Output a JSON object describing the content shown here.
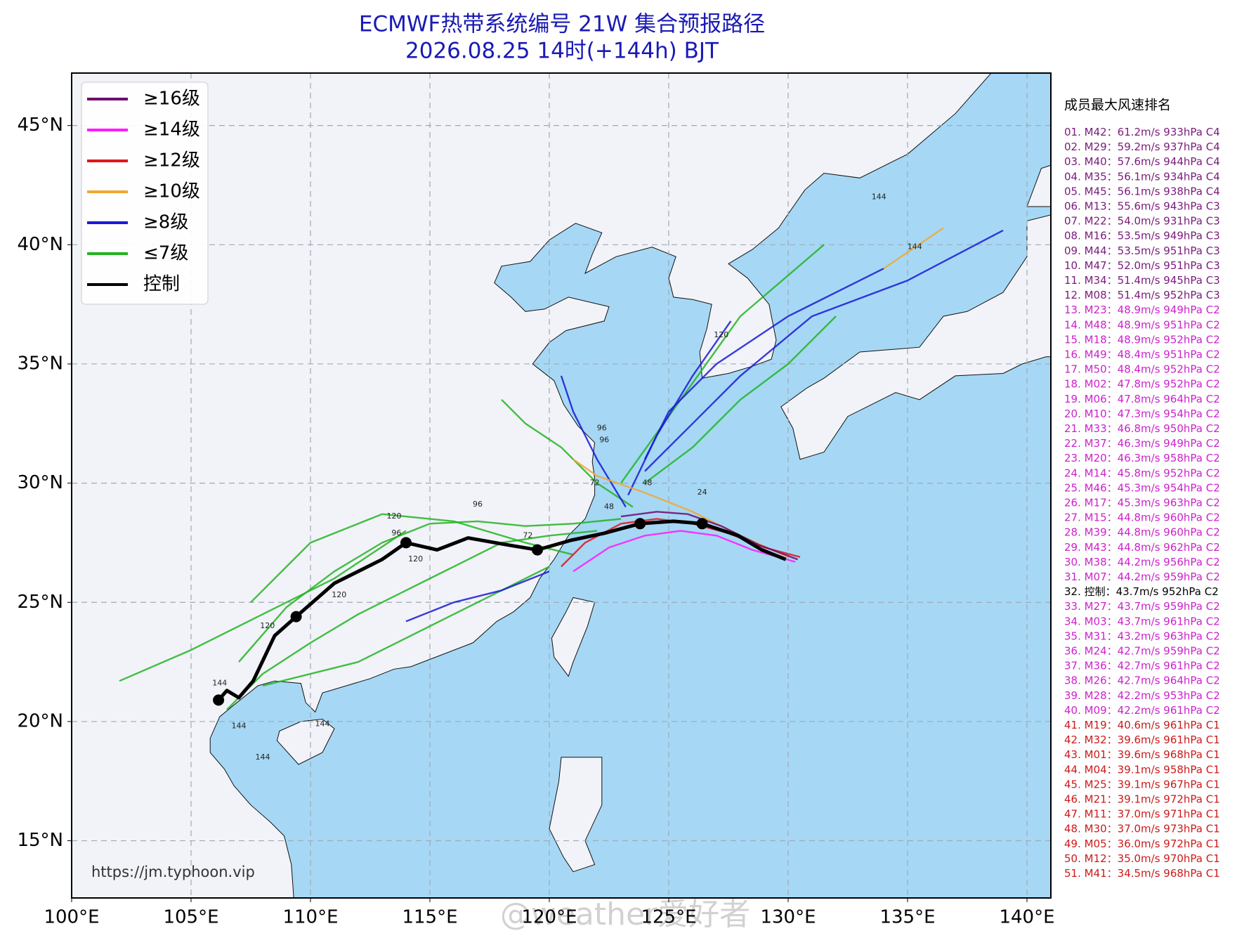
{
  "map_data": {
    "type": "track",
    "title": "ECMWF热带系统编号 21W 集合预报路径",
    "subtitle": "2026.08.25 14时(+144h) BJT",
    "lonlim": [
      100,
      141
    ],
    "latlim": [
      12.6,
      47.2
    ],
    "lonticks": [
      {
        "value": 100,
        "label": "100°E"
      },
      {
        "value": 105,
        "label": "105°E"
      },
      {
        "value": 110,
        "label": "110°E"
      },
      {
        "value": 115,
        "label": "115°E"
      },
      {
        "value": 120,
        "label": "120°E"
      },
      {
        "value": 125,
        "label": "125°E"
      },
      {
        "value": 130,
        "label": "130°E"
      },
      {
        "value": 135,
        "label": "135°E"
      },
      {
        "value": 140,
        "label": "140°E"
      }
    ],
    "latticks": [
      {
        "value": 15,
        "label": "15°N"
      },
      {
        "value": 20,
        "label": "20°N"
      },
      {
        "value": 25,
        "label": "25°N"
      },
      {
        "value": 30,
        "label": "30°N"
      },
      {
        "value": 35,
        "label": "35°N"
      },
      {
        "value": 40,
        "label": "40°N"
      },
      {
        "value": 45,
        "label": "45°N"
      }
    ],
    "grid": true,
    "legend": [
      {
        "label": "≥16级",
        "color": "#6f0a6f"
      },
      {
        "label": "≥14级",
        "color": "#ff1aff"
      },
      {
        "label": "≥12级",
        "color": "#e3141c"
      },
      {
        "label": "≥10级",
        "color": "#f0a830"
      },
      {
        "label": "≥8级",
        "color": "#1a1ad6"
      },
      {
        "label": "≤7级",
        "color": "#22b422"
      },
      {
        "label": "控制",
        "color": "#000000"
      }
    ],
    "tracks": [
      {
        "color": "#22b422",
        "lon": [
          123,
          121,
          119,
          117,
          115,
          113,
          111,
          109,
          107
        ],
        "lat": [
          28.5,
          28.3,
          28.2,
          28.4,
          28.3,
          27.5,
          26.3,
          24.8,
          22.5
        ]
      },
      {
        "color": "#22b422",
        "lon": [
          122,
          120,
          118,
          116,
          114,
          112,
          110,
          108,
          106.5
        ],
        "lat": [
          28,
          27.8,
          27.5,
          26.5,
          25.5,
          24.5,
          23.3,
          22,
          20.5
        ]
      },
      {
        "color": "#22b422",
        "lon": [
          114,
          111,
          108,
          105,
          102
        ],
        "lat": [
          28,
          26,
          24.5,
          23,
          21.7
        ]
      },
      {
        "color": "#22b422",
        "lon": [
          123.5,
          122,
          120.5,
          119,
          118
        ],
        "lat": [
          29,
          30,
          31.5,
          32.5,
          33.5
        ]
      },
      {
        "color": "#22b422",
        "lon": [
          124,
          126,
          128,
          130,
          132
        ],
        "lat": [
          30,
          31.5,
          33.5,
          35,
          37
        ]
      },
      {
        "color": "#22b422",
        "lon": [
          120,
          118,
          116,
          114,
          112,
          110,
          108
        ],
        "lat": [
          26.5,
          25.5,
          24.5,
          23.5,
          22.5,
          22,
          21.5
        ]
      },
      {
        "color": "#22b422",
        "lon": [
          121,
          119,
          116,
          113,
          110,
          107.5
        ],
        "lat": [
          27,
          27.5,
          28.4,
          28.7,
          27.5,
          25
        ]
      },
      {
        "color": "#22b422",
        "lon": [
          123,
          125.5,
          128,
          131.5
        ],
        "lat": [
          30,
          33.5,
          37,
          40
        ]
      },
      {
        "color": "#1a1ad6",
        "lon": [
          124,
          126,
          128,
          131,
          135,
          139
        ],
        "lat": [
          30.5,
          32.5,
          34.5,
          37,
          38.5,
          40.6
        ]
      },
      {
        "color": "#1a1ad6",
        "lon": [
          124,
          125,
          127,
          130,
          134
        ],
        "lat": [
          31,
          33,
          35,
          37,
          39
        ]
      },
      {
        "color": "#f0a830",
        "lon": [
          134,
          136.5
        ],
        "lat": [
          39,
          40.7
        ]
      },
      {
        "color": "#1a1ad6",
        "lon": [
          123.2,
          122,
          121,
          120.5
        ],
        "lat": [
          29,
          31,
          33,
          34.5
        ]
      },
      {
        "color": "#1a1ad6",
        "lon": [
          120,
          118,
          116,
          114
        ],
        "lat": [
          26.3,
          25.5,
          25,
          24.2
        ]
      },
      {
        "color": "#1a1ad6",
        "lon": [
          123.3,
          124.5,
          126,
          127.6
        ],
        "lat": [
          29.5,
          32,
          34.5,
          36.8
        ]
      },
      {
        "color": "#f0a830",
        "lon": [
          130,
          128,
          126,
          124,
          122,
          121
        ],
        "lat": [
          26.9,
          27.8,
          28.8,
          29.6,
          30.3,
          31
        ]
      },
      {
        "color": "#e3141c",
        "lon": [
          130.5,
          129,
          127.5,
          126,
          124.5,
          123,
          121.5,
          120.5
        ],
        "lat": [
          26.9,
          27.3,
          27.9,
          28.3,
          28.5,
          28.3,
          27.5,
          26.5
        ]
      },
      {
        "color": "#ff1aff",
        "lon": [
          130.3,
          128.5,
          127,
          125.5,
          124,
          122.5,
          121
        ],
        "lat": [
          26.7,
          27.2,
          27.8,
          28,
          27.8,
          27.3,
          26.3
        ]
      },
      {
        "color": "#6f0a6f",
        "lon": [
          130.4,
          128.8,
          127.2,
          125.8,
          124.5,
          123
        ],
        "lat": [
          26.8,
          27.4,
          28.2,
          28.7,
          28.8,
          28.6
        ]
      }
    ],
    "control": {
      "lon": [
        106.15,
        106.5,
        107,
        107.6,
        108.5,
        109.4,
        111,
        113,
        114,
        115.3,
        116.6,
        118.3,
        119.5,
        120.9,
        122.3,
        123.8,
        125.2,
        126.4,
        127.9,
        128.9,
        129.9
      ],
      "lat": [
        20.9,
        21.3,
        21,
        21.7,
        23.6,
        24.4,
        25.8,
        26.8,
        27.5,
        27.2,
        27.7,
        27.4,
        27.2,
        27.6,
        27.9,
        28.3,
        28.4,
        28.3,
        27.8,
        27.2,
        26.8
      ]
    },
    "control_markers": {
      "lon": [
        106.15,
        109.4,
        114,
        119.5,
        123.8,
        126.4
      ],
      "lat": [
        20.9,
        24.4,
        27.5,
        27.2,
        28.3,
        28.3
      ]
    },
    "hour_labels": {
      "texts": [
        "144",
        "144",
        "144",
        "144",
        "144",
        "120",
        "120",
        "120",
        "120",
        "96",
        "96",
        "96",
        "72",
        "72",
        "48",
        "48",
        "24",
        "120",
        "144",
        "96"
      ],
      "lon": [
        106.2,
        108,
        107,
        110.5,
        133.8,
        108.2,
        111.2,
        113.5,
        114.4,
        117,
        113.6,
        122.3,
        119.1,
        121.9,
        124.1,
        122.5,
        126.4,
        127.2,
        135.3,
        122.2
      ],
      "lat": [
        21.6,
        18.5,
        19.8,
        19.9,
        42,
        24,
        25.3,
        28.6,
        26.8,
        29.1,
        27.9,
        31.8,
        27.8,
        30,
        30,
        29,
        29.6,
        36.2,
        39.9,
        32.3
      ]
    },
    "source": "https://jm.typhoon.vip",
    "watermark": "@weather爱好者",
    "ranking": {
      "title": "成员最大风速排名",
      "items": [
        {
          "text": "01. M42：61.2m/s 933hPa C4",
          "color": "#7a1a7a"
        },
        {
          "text": "02. M29：59.2m/s 937hPa C4",
          "color": "#7a1a7a"
        },
        {
          "text": "03. M40：57.6m/s 944hPa C4",
          "color": "#7a1a7a"
        },
        {
          "text": "04. M35：56.1m/s 934hPa C4",
          "color": "#7a1a7a"
        },
        {
          "text": "05. M45：56.1m/s 938hPa C4",
          "color": "#7a1a7a"
        },
        {
          "text": "06. M13：55.6m/s 943hPa C3",
          "color": "#7a1a7a"
        },
        {
          "text": "07. M22：54.0m/s 931hPa C3",
          "color": "#7a1a7a"
        },
        {
          "text": "08. M16：53.5m/s 949hPa C3",
          "color": "#7a1a7a"
        },
        {
          "text": "09. M44：53.5m/s 951hPa C3",
          "color": "#7a1a7a"
        },
        {
          "text": "10. M47：52.0m/s 951hPa C3",
          "color": "#7a1a7a"
        },
        {
          "text": "11. M34：51.4m/s 945hPa C3",
          "color": "#7a1a7a"
        },
        {
          "text": "12. M08：51.4m/s 952hPa C3",
          "color": "#7a1a7a"
        },
        {
          "text": "13. M23：48.9m/s 949hPa C2",
          "color": "#cc22cc"
        },
        {
          "text": "14. M48：48.9m/s 951hPa C2",
          "color": "#cc22cc"
        },
        {
          "text": "15. M18：48.9m/s 952hPa C2",
          "color": "#cc22cc"
        },
        {
          "text": "16. M49：48.4m/s 951hPa C2",
          "color": "#cc22cc"
        },
        {
          "text": "17. M50：48.4m/s 952hPa C2",
          "color": "#cc22cc"
        },
        {
          "text": "18. M02：47.8m/s 952hPa C2",
          "color": "#cc22cc"
        },
        {
          "text": "19. M06：47.8m/s 964hPa C2",
          "color": "#cc22cc"
        },
        {
          "text": "20. M10：47.3m/s 954hPa C2",
          "color": "#cc22cc"
        },
        {
          "text": "21. M33：46.8m/s 950hPa C2",
          "color": "#cc22cc"
        },
        {
          "text": "22. M37：46.3m/s 949hPa C2",
          "color": "#cc22cc"
        },
        {
          "text": "23. M20：46.3m/s 958hPa C2",
          "color": "#cc22cc"
        },
        {
          "text": "24. M14：45.8m/s 952hPa C2",
          "color": "#cc22cc"
        },
        {
          "text": "25. M46：45.3m/s 954hPa C2",
          "color": "#cc22cc"
        },
        {
          "text": "26. M17：45.3m/s 963hPa C2",
          "color": "#cc22cc"
        },
        {
          "text": "27. M15：44.8m/s 960hPa C2",
          "color": "#cc22cc"
        },
        {
          "text": "28. M39：44.8m/s 960hPa C2",
          "color": "#cc22cc"
        },
        {
          "text": "29. M43：44.8m/s 962hPa C2",
          "color": "#cc22cc"
        },
        {
          "text": "30. M38：44.2m/s 956hPa C2",
          "color": "#cc22cc"
        },
        {
          "text": "31. M07：44.2m/s 959hPa C2",
          "color": "#cc22cc"
        },
        {
          "text": "32. 控制：43.7m/s 952hPa C2",
          "color": "#000000"
        },
        {
          "text": "33. M27：43.7m/s 959hPa C2",
          "color": "#cc22cc"
        },
        {
          "text": "34. M03：43.7m/s 961hPa C2",
          "color": "#cc22cc"
        },
        {
          "text": "35. M31：43.2m/s 963hPa C2",
          "color": "#cc22cc"
        },
        {
          "text": "36. M24：42.7m/s 959hPa C2",
          "color": "#cc22cc"
        },
        {
          "text": "37. M36：42.7m/s 961hPa C2",
          "color": "#cc22cc"
        },
        {
          "text": "38. M26：42.7m/s 964hPa C2",
          "color": "#cc22cc"
        },
        {
          "text": "39. M28：42.2m/s 953hPa C2",
          "color": "#cc22cc"
        },
        {
          "text": "40. M09：42.2m/s 961hPa C2",
          "color": "#cc22cc"
        },
        {
          "text": "41. M19：40.6m/s 961hPa C1",
          "color": "#cc1a1a"
        },
        {
          "text": "42. M32：39.6m/s 961hPa C1",
          "color": "#cc1a1a"
        },
        {
          "text": "43. M01：39.6m/s 968hPa C1",
          "color": "#cc1a1a"
        },
        {
          "text": "44. M04：39.1m/s 958hPa C1",
          "color": "#cc1a1a"
        },
        {
          "text": "45. M25：39.1m/s 967hPa C1",
          "color": "#cc1a1a"
        },
        {
          "text": "46. M21：39.1m/s 972hPa C1",
          "color": "#cc1a1a"
        },
        {
          "text": "47. M11：37.0m/s 971hPa C1",
          "color": "#cc1a1a"
        },
        {
          "text": "48. M30：37.0m/s 973hPa C1",
          "color": "#cc1a1a"
        },
        {
          "text": "49. M05：36.0m/s 972hPa C1",
          "color": "#cc1a1a"
        },
        {
          "text": "50. M12：35.0m/s 970hPa C1",
          "color": "#cc1a1a"
        },
        {
          "text": "51. M41：34.5m/s 968hPa C1",
          "color": "#cc1a1a"
        }
      ]
    }
  }
}
